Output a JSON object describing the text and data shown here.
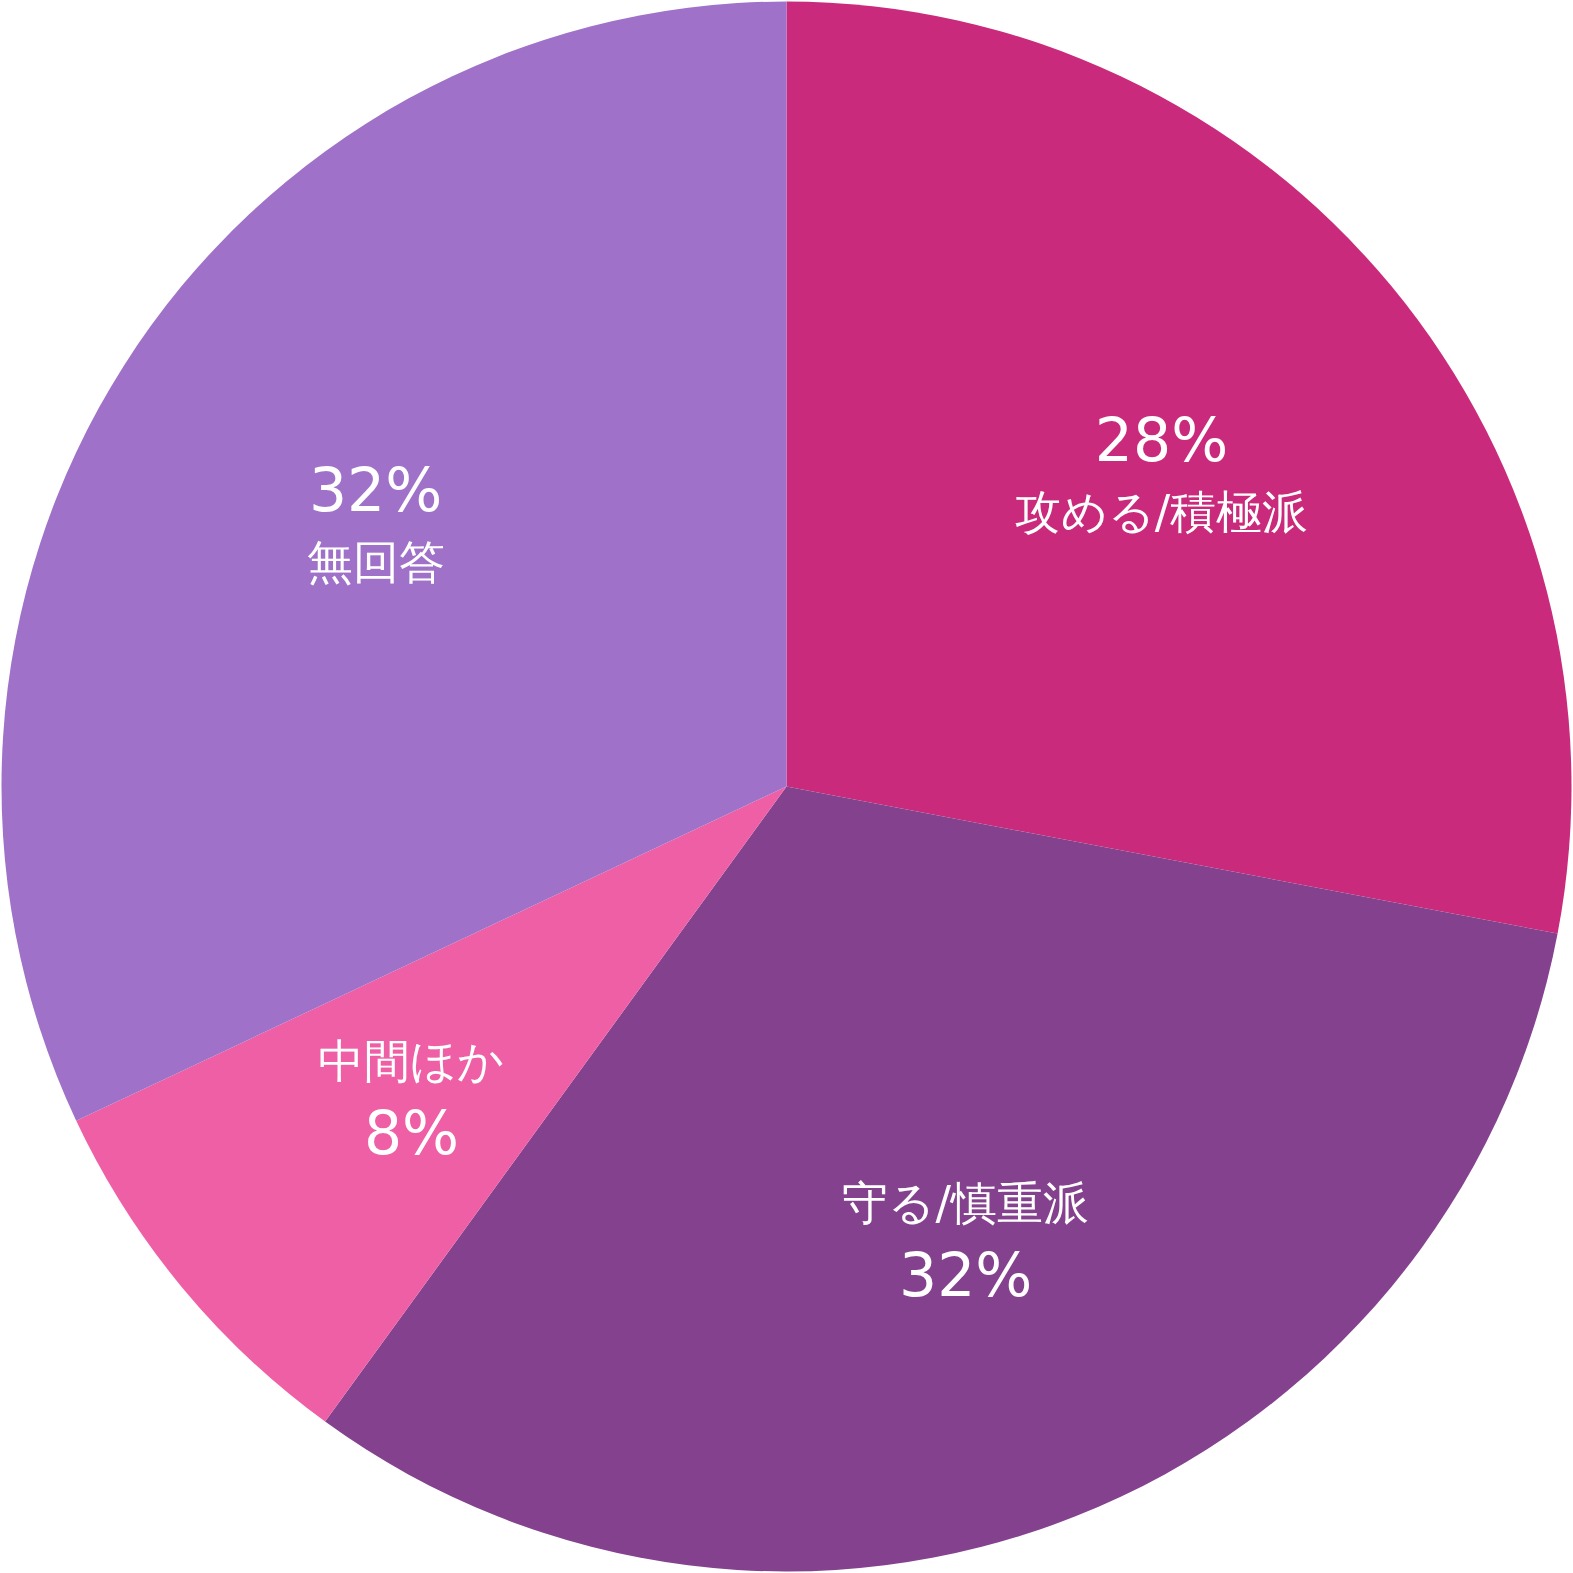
{
  "chart_data": {
    "type": "pie",
    "categories": [
      "攻める/積極派",
      "守る/慎重派",
      "中間ほか",
      "無回答"
    ],
    "values": [
      28,
      32,
      8,
      32
    ],
    "colors": [
      "#c92a7c",
      "#84418e",
      "#ee5fa5",
      "#9f71c8"
    ],
    "value_labels": [
      "28%",
      "32%",
      "8%",
      "32%"
    ]
  }
}
